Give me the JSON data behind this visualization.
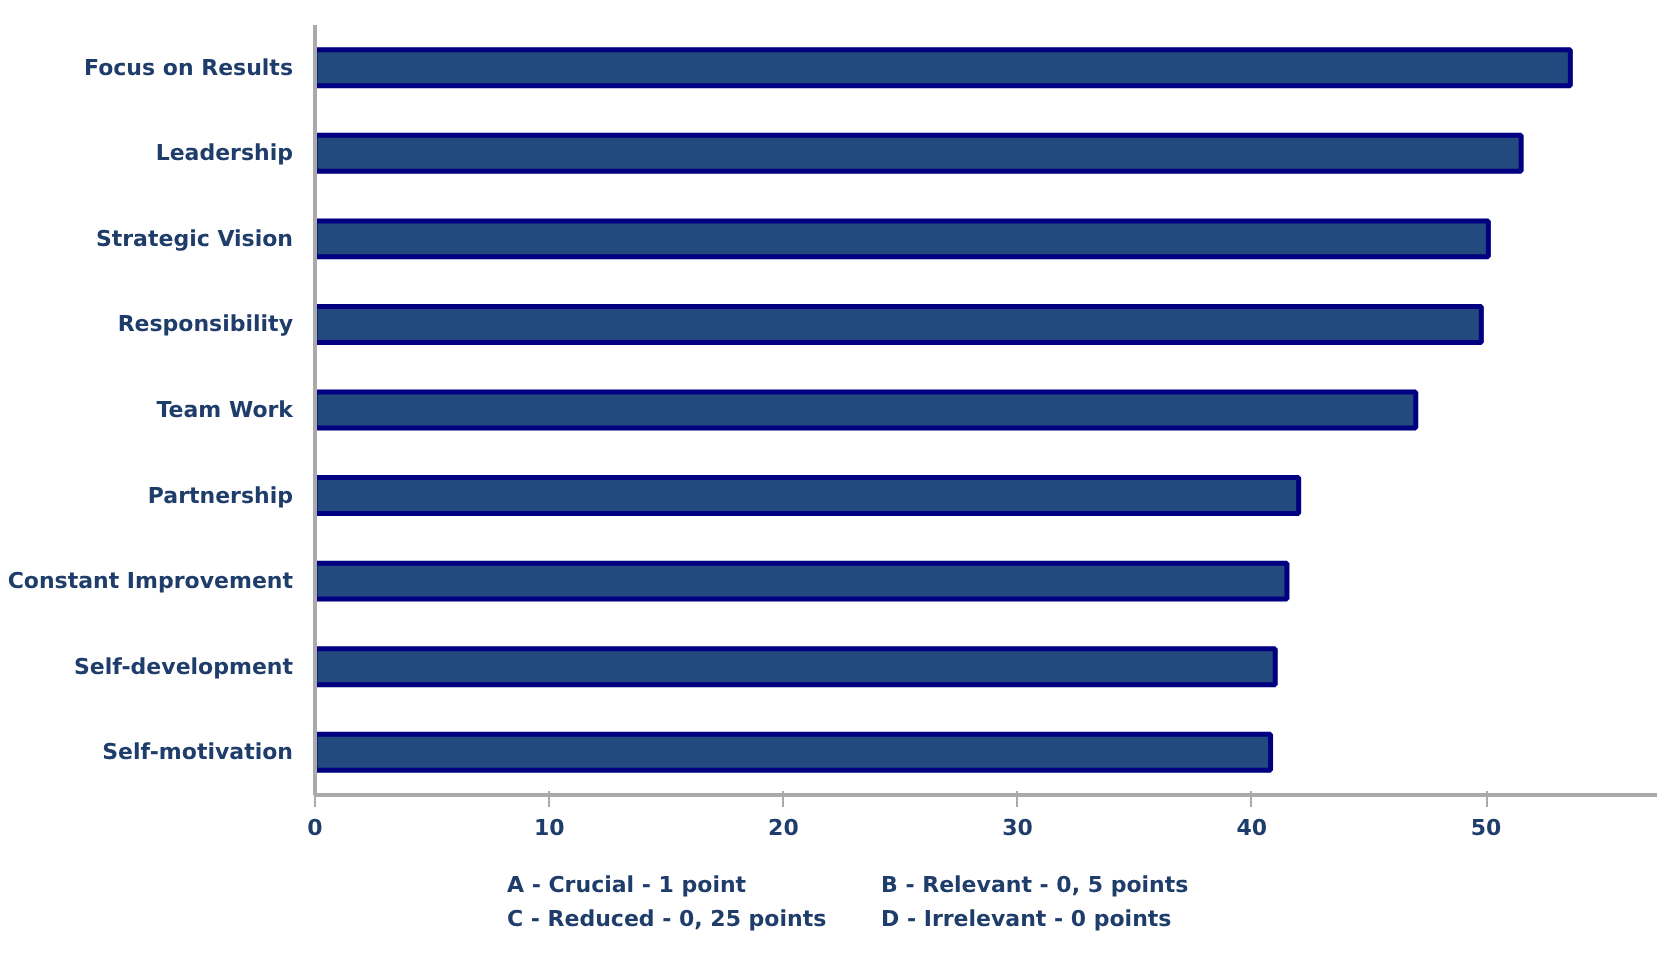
{
  "chart_data": {
    "type": "bar",
    "orientation": "horizontal",
    "categories": [
      "Focus on Results",
      "Leadership",
      "Strategic Vision",
      "Responsibility",
      "Team Work",
      "Partnership",
      "Constant Improvement",
      "Self-development",
      "Self-motivation"
    ],
    "values": [
      53.6,
      51.5,
      50.1,
      49.8,
      47.0,
      42.0,
      41.5,
      41.0,
      40.8
    ],
    "color": "#234a7e",
    "xlim": [
      0,
      57.3
    ],
    "xticks": [
      0,
      10,
      20,
      30,
      40,
      50
    ],
    "grid": false,
    "annotations": [
      "A - Crucial  - 1 point",
      "B - Relevant    - 0, 5 points",
      "C - Reduced  - 0, 25 points",
      "D - Irrelevant    - 0 points"
    ]
  }
}
